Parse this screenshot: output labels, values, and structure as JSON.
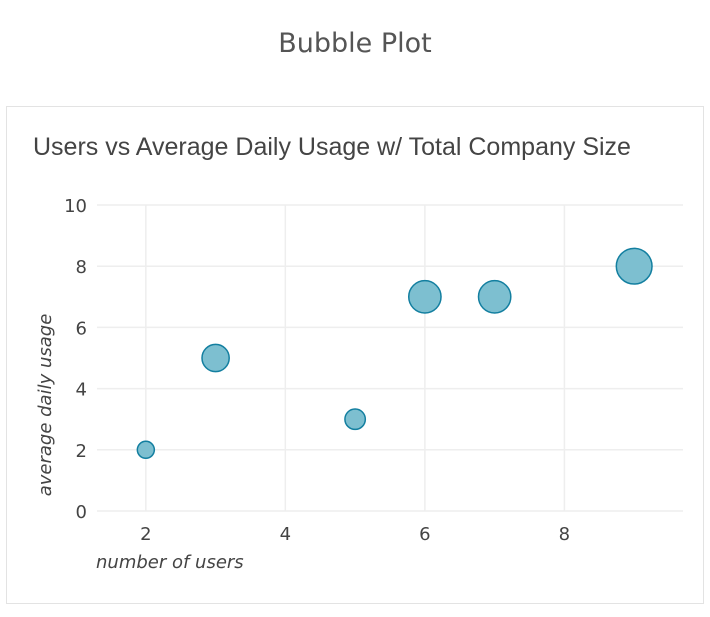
{
  "page": {
    "title": "Bubble Plot"
  },
  "chart_data": {
    "type": "scatter",
    "title": "Users vs Average Daily Usage w/ Total Company Size",
    "xlabel": "number of users",
    "ylabel": "average daily usage",
    "xlim": [
      1.3,
      9.7
    ],
    "ylim": [
      0,
      10
    ],
    "xticks": [
      2,
      4,
      6,
      8
    ],
    "yticks": [
      0,
      2,
      4,
      6,
      8,
      10
    ],
    "grid": true,
    "legend": "none",
    "points": [
      {
        "x": 2,
        "y": 2,
        "size": 1.0
      },
      {
        "x": 3,
        "y": 5,
        "size": 1.6
      },
      {
        "x": 5,
        "y": 3,
        "size": 1.2
      },
      {
        "x": 6,
        "y": 7,
        "size": 1.9
      },
      {
        "x": 7,
        "y": 7,
        "size": 1.9
      },
      {
        "x": 9,
        "y": 8,
        "size": 2.1
      }
    ],
    "colors": {
      "fill": "#7dbfd0",
      "stroke": "#137fa0",
      "grid": "#eeeeee",
      "text": "#444444"
    }
  }
}
